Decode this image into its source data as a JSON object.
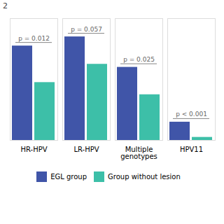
{
  "chart_data": {
    "type": "bar",
    "ylabel": "2",
    "categories": [
      "HR-HPV",
      "LR-HPV",
      "Multiple\ngenotypes",
      "HPV11"
    ],
    "series": [
      {
        "name": "EGL group",
        "color": "#4055A8",
        "values": [
          62,
          68,
          48,
          12
        ]
      },
      {
        "name": "Group without lesion",
        "color": "#3DBFA8",
        "values": [
          38,
          50,
          30,
          2
        ]
      }
    ],
    "annotations": [
      "p = 0.012",
      "p = 0.057",
      "p = 0.025",
      "p < 0.001"
    ],
    "ylim": [
      0,
      80
    ],
    "grid": false,
    "legend": "bottom",
    "tick_labels": "x"
  }
}
